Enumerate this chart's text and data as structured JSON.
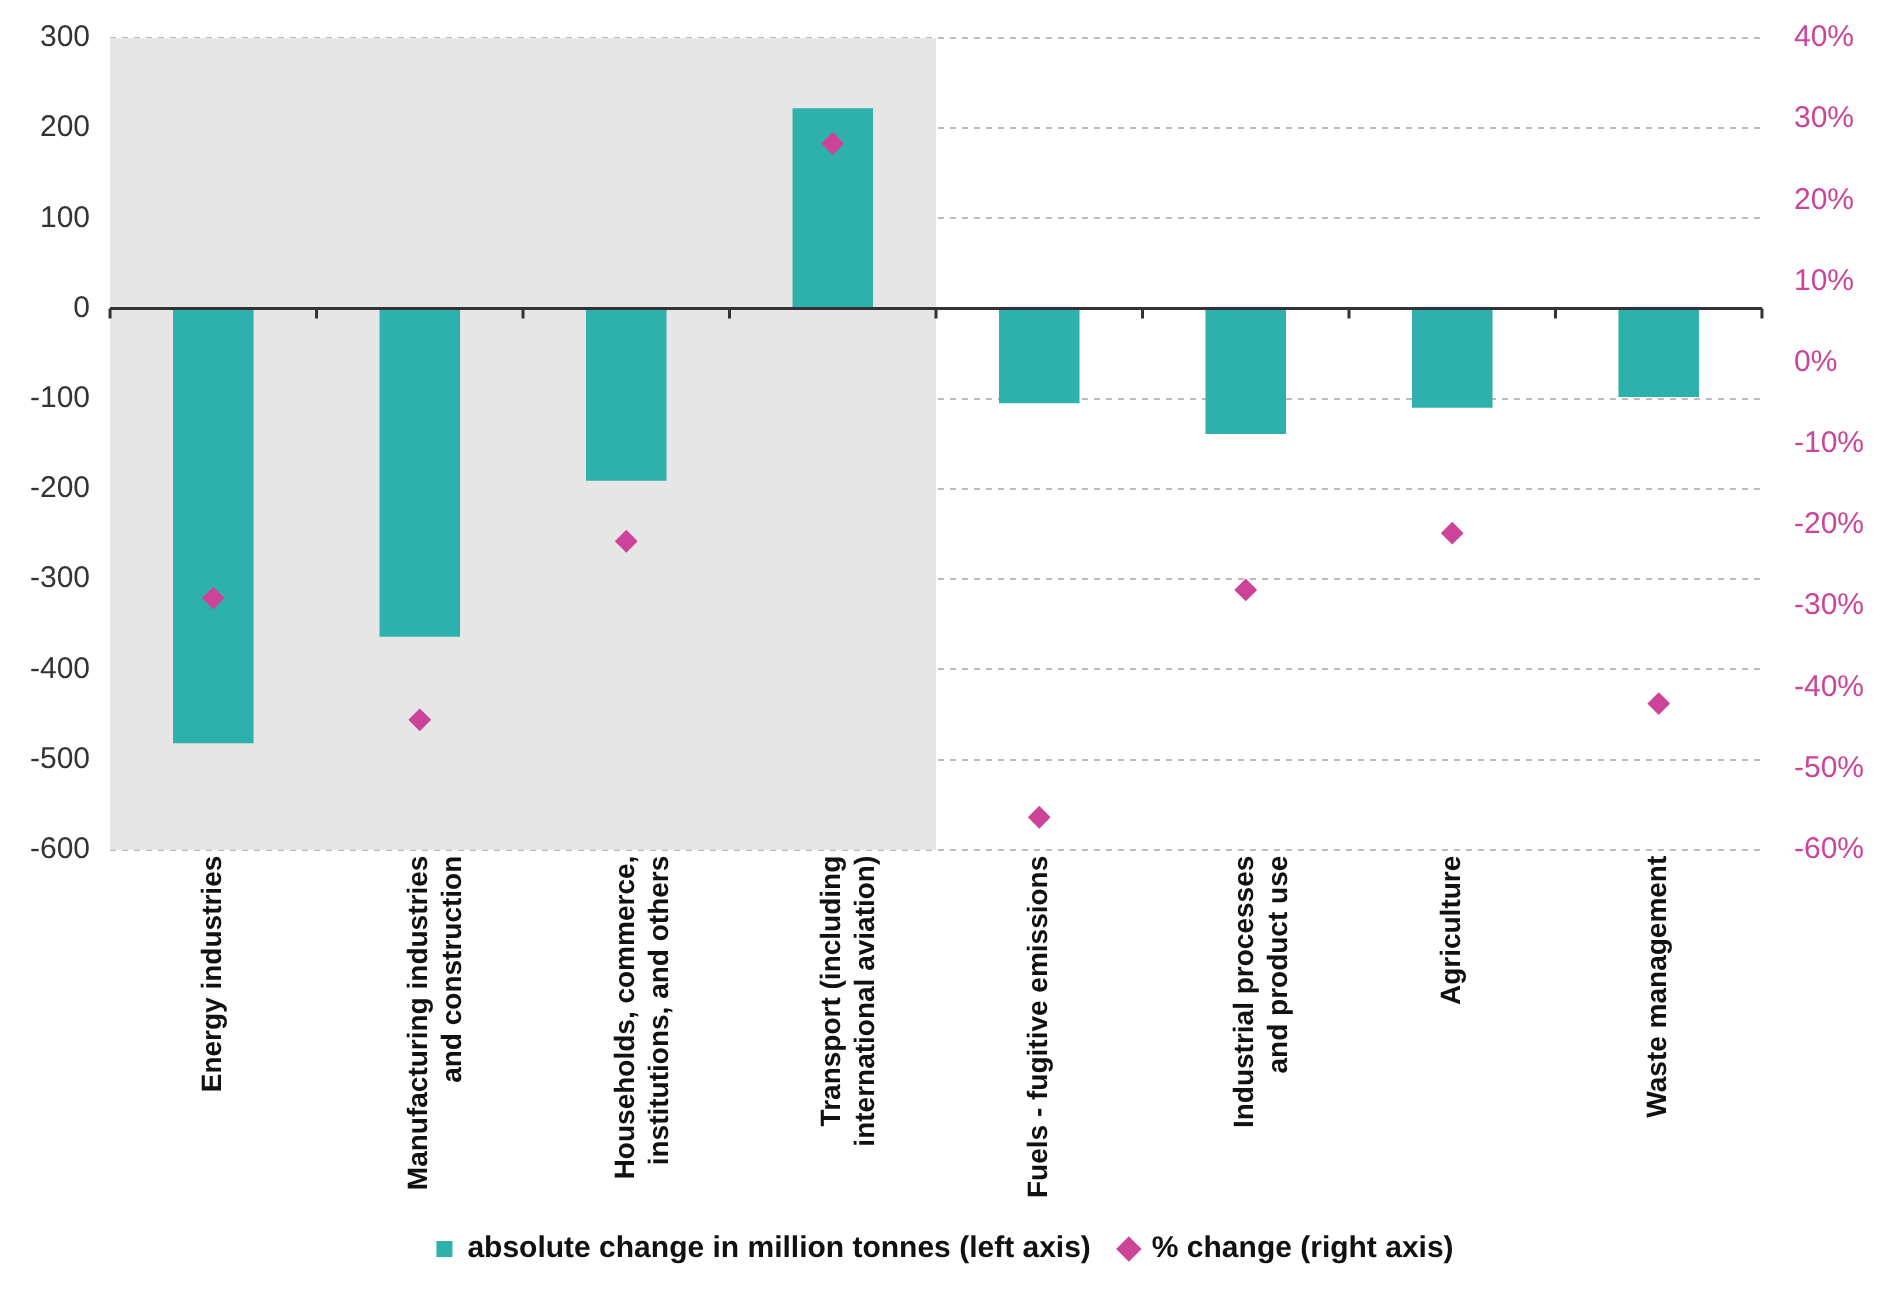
{
  "chart_data": {
    "type": "bar",
    "categories": [
      "Energy industries",
      "Manufacturing industries\nand construction",
      "Households, commerce,\ninstitutions, and others",
      "Transport (including\ninternational aviation)",
      "Fuels - fugitive emissions",
      "Industrial processes\nand product use",
      "Agriculture",
      "Waste management"
    ],
    "series": [
      {
        "name": "absolute change in million tonnes (left axis)",
        "color": "#2eb0ad",
        "values": [
          -482,
          -364,
          -191,
          222,
          -105,
          -139,
          -110,
          -98
        ]
      },
      {
        "name": "% change (right axis)",
        "type": "scatter",
        "axis": "y2",
        "color": "#cc4499",
        "marker": "diamond",
        "values": [
          -29,
          -44,
          -22,
          27,
          -56,
          -28,
          -21,
          -42
        ]
      }
    ],
    "ylim": [
      -600,
      300
    ],
    "yticks": [
      -600,
      -500,
      -400,
      -300,
      -200,
      -100,
      0,
      100,
      200,
      300
    ],
    "y2lim": [
      -60,
      40
    ],
    "y2ticks": [
      {
        "value": -60,
        "label": "-60%"
      },
      {
        "value": -50,
        "label": "-50%"
      },
      {
        "value": -40,
        "label": "-40%"
      },
      {
        "value": -30,
        "label": "-30%"
      },
      {
        "value": -20,
        "label": "-20%"
      },
      {
        "value": -10,
        "label": "-10%"
      },
      {
        "value": 0,
        "label": "0%"
      },
      {
        "value": 10,
        "label": "10%"
      },
      {
        "value": 20,
        "label": "20%"
      },
      {
        "value": 30,
        "label": "30%"
      },
      {
        "value": 40,
        "label": "40%"
      }
    ],
    "bands": [
      {
        "axis": "x",
        "from": "Energy industries",
        "to": "Transport (including\ninternational aviation)",
        "color": "#e6e6e6"
      }
    ],
    "grid": "y",
    "legend": "bottom"
  }
}
